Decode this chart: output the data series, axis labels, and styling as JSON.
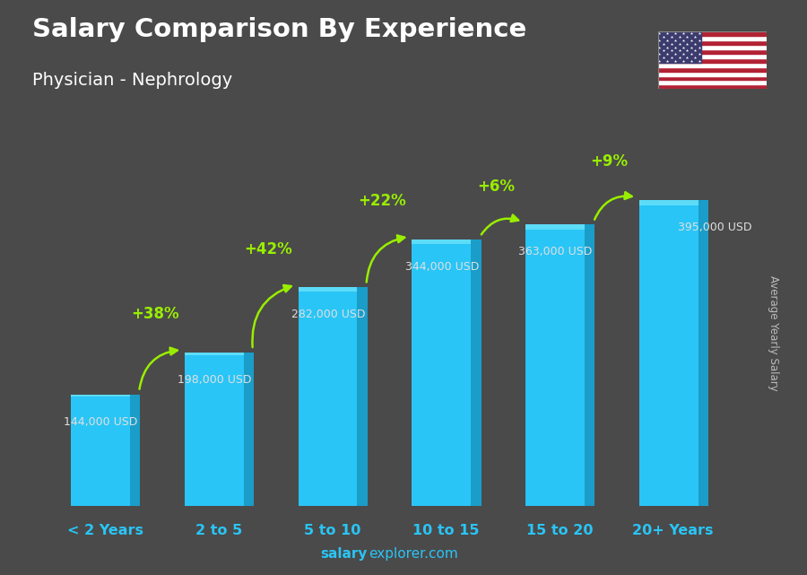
{
  "title": "Salary Comparison By Experience",
  "subtitle": "Physician - Nephrology",
  "ylabel": "Average Yearly Salary",
  "footer_bold": "salary",
  "footer_normal": "explorer.com",
  "categories": [
    "< 2 Years",
    "2 to 5",
    "5 to 10",
    "10 to 15",
    "15 to 20",
    "20+ Years"
  ],
  "values": [
    144000,
    198000,
    282000,
    344000,
    363000,
    395000
  ],
  "labels": [
    "144,000 USD",
    "198,000 USD",
    "282,000 USD",
    "344,000 USD",
    "363,000 USD",
    "395,000 USD"
  ],
  "pct_labels": [
    "+38%",
    "+42%",
    "+22%",
    "+6%",
    "+9%"
  ],
  "bar_color_light": "#29C5F6",
  "bar_color_dark": "#1a9dc8",
  "bar_top_color": "#5ddcf8",
  "bg_color": "#4a4a4a",
  "title_color": "#ffffff",
  "label_color": "#e0e0e0",
  "pct_color": "#99ee00",
  "xlabel_color": "#29C5F6",
  "footer_color": "#29C5F6",
  "ylabel_color": "#bbbbbb",
  "max_val": 460000,
  "bar_width": 0.52
}
